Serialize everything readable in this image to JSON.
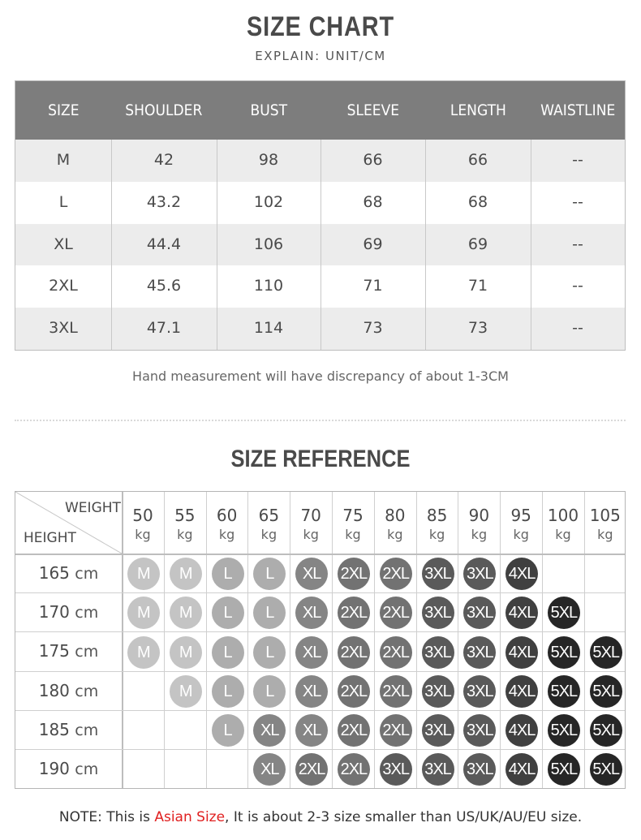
{
  "size_chart": {
    "title": "SIZE CHART",
    "subtitle": "EXPLAIN: UNIT/CM",
    "columns": [
      "SIZE",
      "SHOULDER",
      "BUST",
      "SLEEVE",
      "LENGTH",
      "WAISTLINE"
    ],
    "rows": [
      [
        "M",
        "42",
        "98",
        "66",
        "66",
        "--"
      ],
      [
        "L",
        "43.2",
        "102",
        "68",
        "68",
        "--"
      ],
      [
        "XL",
        "44.4",
        "106",
        "69",
        "69",
        "--"
      ],
      [
        "2XL",
        "45.6",
        "110",
        "71",
        "71",
        "--"
      ],
      [
        "3XL",
        "47.1",
        "114",
        "73",
        "73",
        "--"
      ]
    ],
    "note": "Hand measurement will have discrepancy of about 1-3CM",
    "header_color": "#7d7d7d"
  },
  "size_reference": {
    "title": "SIZE REFERENCE",
    "weight_label": "WEIGHT",
    "height_label": "HEIGHT",
    "weights": [
      "50",
      "55",
      "60",
      "65",
      "70",
      "75",
      "80",
      "85",
      "90",
      "95",
      "100",
      "105"
    ],
    "weight_unit": "kg",
    "heights": [
      "165",
      "170",
      "175",
      "180",
      "185",
      "190"
    ],
    "height_unit": "cm",
    "grid": [
      [
        "M",
        "M",
        "L",
        "L",
        "XL",
        "2XL",
        "2XL",
        "3XL",
        "3XL",
        "4XL",
        "",
        ""
      ],
      [
        "M",
        "M",
        "L",
        "L",
        "XL",
        "2XL",
        "2XL",
        "3XL",
        "3XL",
        "4XL",
        "5XL",
        ""
      ],
      [
        "M",
        "M",
        "L",
        "L",
        "XL",
        "2XL",
        "2XL",
        "3XL",
        "3XL",
        "4XL",
        "5XL",
        "5XL"
      ],
      [
        "",
        "M",
        "L",
        "L",
        "XL",
        "2XL",
        "2XL",
        "3XL",
        "3XL",
        "4XL",
        "5XL",
        "5XL"
      ],
      [
        "",
        "",
        "L",
        "XL",
        "XL",
        "2XL",
        "2XL",
        "3XL",
        "3XL",
        "4XL",
        "5XL",
        "5XL"
      ],
      [
        "",
        "",
        "",
        "XL",
        "2XL",
        "2XL",
        "3XL",
        "3XL",
        "3XL",
        "4XL",
        "5XL",
        "5XL"
      ]
    ],
    "badge_colors": {
      "M": "#c4c4c4",
      "L": "#adadad",
      "XL": "#858585",
      "2XL": "#727272",
      "3XL": "#5a5a5a",
      "4XL": "#404040",
      "5XL": "#262626"
    }
  },
  "bottom_note": {
    "prefix": "NOTE: This is ",
    "highlight": "Asian Size",
    "suffix": ", It is about 2-3 size smaller than US/UK/AU/EU size.",
    "highlight_color": "#e02020"
  }
}
